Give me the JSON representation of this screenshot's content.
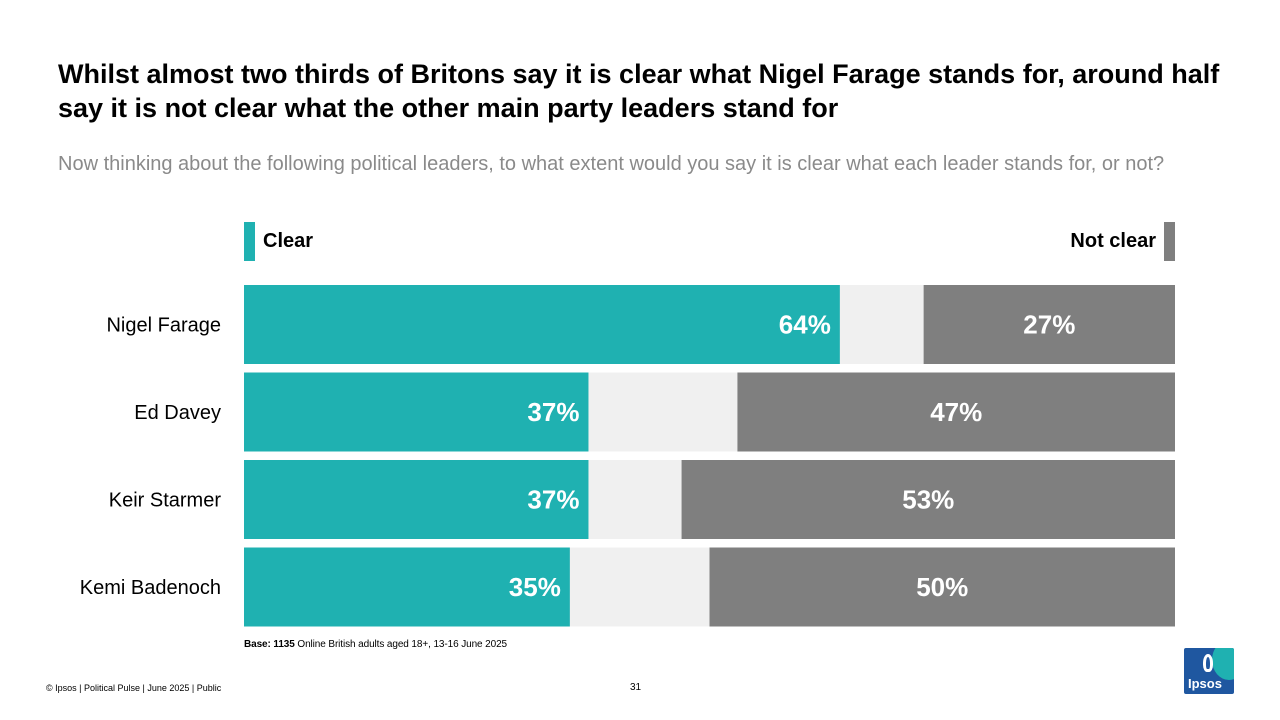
{
  "title": "Whilst almost two thirds of Britons say it is clear what Nigel Farage stands for, around half say it is not clear what the other main party leaders stand for",
  "subtitle": "Now thinking about the following political leaders, to what extent would you say it is clear what each leader stands for, or not?",
  "legend": {
    "clear_label": "Clear",
    "not_clear_label": "Not clear"
  },
  "chart_data": {
    "type": "bar",
    "orientation": "horizontal-diverging",
    "categories": [
      "Nigel Farage",
      "Ed Davey",
      "Keir Starmer",
      "Kemi Badenoch"
    ],
    "series": [
      {
        "name": "Clear",
        "values": [
          64,
          37,
          37,
          35
        ],
        "color": "#1fb1b1"
      },
      {
        "name": "Not clear",
        "values": [
          27,
          47,
          53,
          50
        ],
        "color": "#7f7f7f"
      }
    ],
    "remainder_color": "#f0f0f0",
    "value_labels": {
      "Clear": [
        "64%",
        "37%",
        "37%",
        "35%"
      ],
      "Not clear": [
        "27%",
        "47%",
        "53%",
        "50%"
      ]
    },
    "xlim": [
      0,
      100
    ],
    "legend_position": "top"
  },
  "base": {
    "bold": "Base: 1135",
    "text": " Online British adults aged 18+,  13-16 June 2025"
  },
  "footer": "© Ipsos | Political Pulse | June 2025 | Public",
  "page_number": "31",
  "logo_text": "Ipsos",
  "colors": {
    "clear": "#1fb1b1",
    "not_clear": "#7f7f7f",
    "remainder": "#f0f0f0",
    "brand_blue": "#1f57a0"
  }
}
